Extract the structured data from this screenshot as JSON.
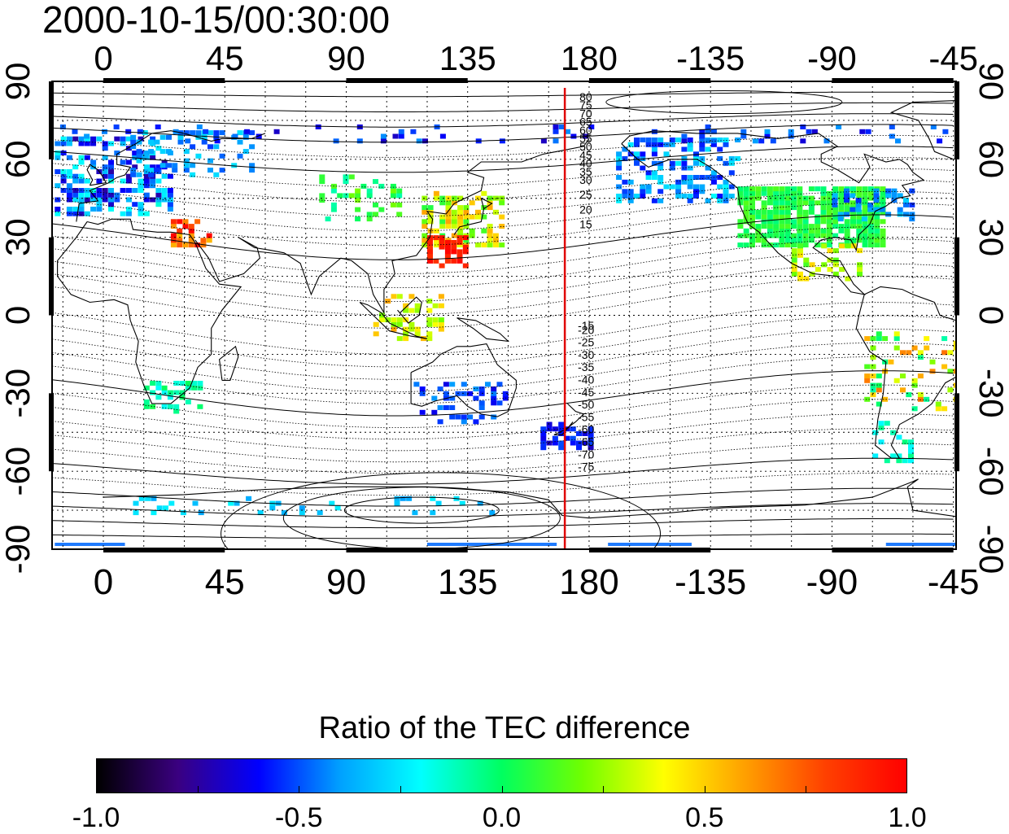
{
  "title": "2000-10-15/00:30:00",
  "map": {
    "top_lon_labels": [
      "0",
      "45",
      "90",
      "135",
      "180",
      "-135",
      "-90",
      "-45"
    ],
    "bottom_lon_labels": [
      "0",
      "45",
      "90",
      "135",
      "180",
      "-135",
      "-90",
      "-45"
    ],
    "left_lat_labels": [
      "90",
      "60",
      "30",
      "0",
      "-30",
      "-60",
      "-90"
    ],
    "right_lat_labels": [
      "90",
      "60",
      "30",
      "0",
      "-30",
      "-60",
      "-90"
    ],
    "lon_range_deg": [
      -19,
      316
    ],
    "lat_range_deg": [
      -90,
      90
    ],
    "red_meridian_lon": 171,
    "contour_labels_north": [
      "80",
      "75",
      "70",
      "65",
      "60",
      "55",
      "50",
      "45",
      "40",
      "35",
      "30",
      "25",
      "20",
      "15"
    ],
    "contour_labels_south": [
      "-15",
      "-20",
      "-25",
      "-30",
      "-35",
      "-40",
      "-45",
      "-50",
      "-55",
      "-60",
      "-65",
      "-70",
      "-75"
    ],
    "colors": {
      "red_line": "#e00000",
      "contour": "#000000"
    }
  },
  "colorbar": {
    "title": "Ratio of the TEC difference",
    "tick_labels": [
      "-1.0",
      "-0.5",
      "0.0",
      "0.5",
      "1.0"
    ],
    "range": [
      -1.0,
      1.0
    ],
    "colormap": [
      "#000000",
      "#3a0080",
      "#0000ff",
      "#00a0ff",
      "#00ffff",
      "#00ff60",
      "#70ff00",
      "#ffff00",
      "#ffa000",
      "#ff4000",
      "#ff0000"
    ]
  }
}
